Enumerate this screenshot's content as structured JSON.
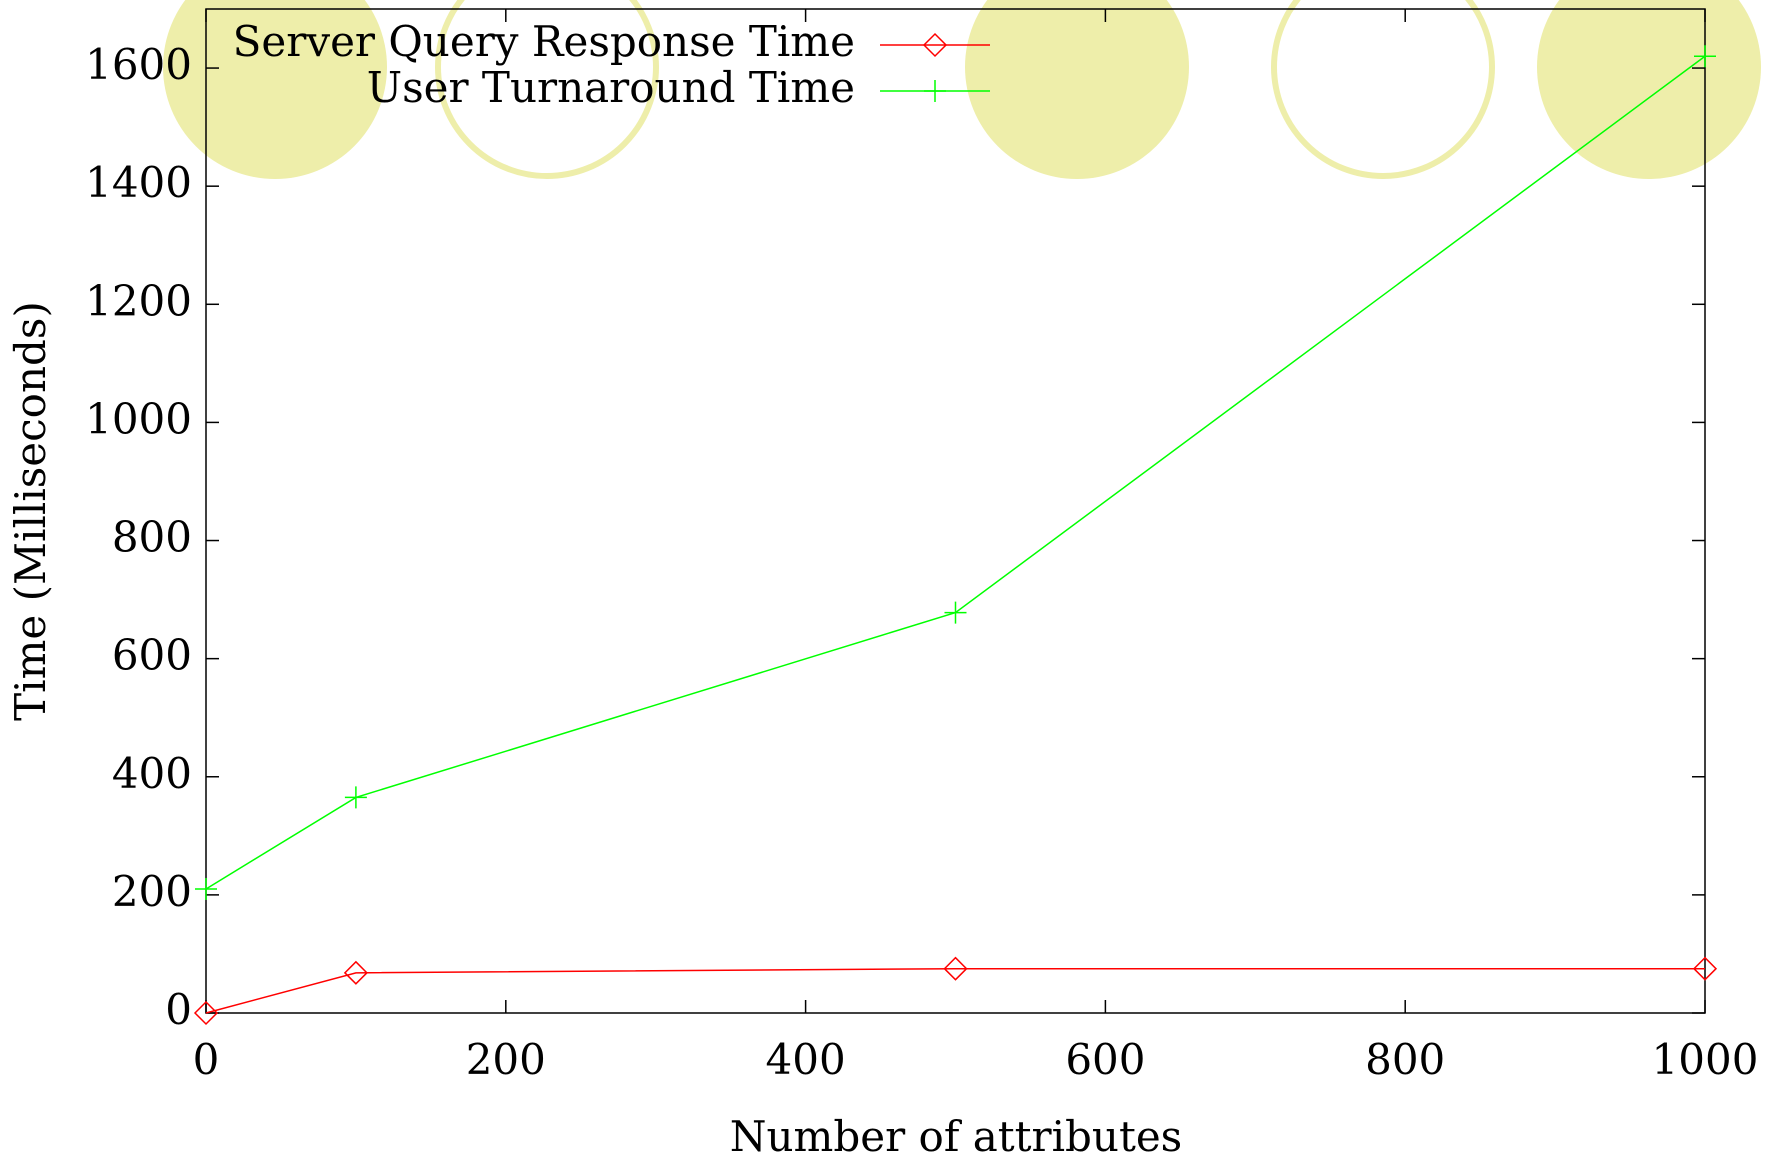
{
  "chart_data": {
    "type": "line",
    "x_label": "Number of attributes",
    "y_label": "Time (Milliseconds)",
    "x": [
      0,
      100,
      500,
      1000
    ],
    "series": [
      {
        "name": "Server Query Response Time",
        "color": "#ff0000",
        "marker": "diamond",
        "values": [
          0,
          68,
          75,
          75
        ]
      },
      {
        "name": "User Turnaround Time",
        "color": "#00ff00",
        "marker": "plus",
        "values": [
          210,
          365,
          678,
          1620
        ]
      }
    ],
    "xlim": [
      0,
      1000
    ],
    "xticks": [
      0,
      200,
      400,
      600,
      800,
      1000
    ],
    "ylim": [
      0,
      1700
    ],
    "yticks": [
      0,
      200,
      400,
      600,
      800,
      1000,
      1200,
      1400,
      1600
    ],
    "legend": "top-left",
    "grid": false
  }
}
